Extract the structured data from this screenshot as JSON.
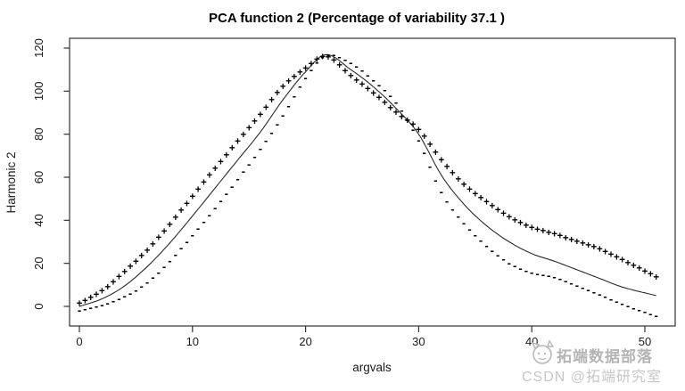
{
  "chart_data": {
    "type": "line",
    "title": "PCA function 2 (Percentage of variability 37.1 )",
    "pca_function_number": 2,
    "percent_variability": 37.1,
    "xlabel": "argvals",
    "ylabel": "Harmonic 2",
    "xlim": [
      0,
      51
    ],
    "ylim": [
      -9,
      122
    ],
    "xticks": [
      0,
      10,
      20,
      30,
      40,
      50
    ],
    "yticks": [
      0,
      20,
      40,
      60,
      80,
      100,
      120
    ],
    "grid": false,
    "legend": "none",
    "marker_step": 0.5,
    "series": [
      {
        "name": "mean_curve",
        "style": "solid-line",
        "marker": "",
        "points": [
          [
            0,
            0
          ],
          [
            2,
            3.5
          ],
          [
            4,
            9.5
          ],
          [
            6,
            18.5
          ],
          [
            8,
            29.5
          ],
          [
            10,
            42
          ],
          [
            12,
            55
          ],
          [
            14,
            68
          ],
          [
            16,
            81
          ],
          [
            18,
            96
          ],
          [
            20,
            109
          ],
          [
            21.8,
            117
          ],
          [
            24,
            110
          ],
          [
            26,
            102
          ],
          [
            28,
            92
          ],
          [
            30,
            80
          ],
          [
            32,
            61
          ],
          [
            34,
            47.5
          ],
          [
            36,
            37.5
          ],
          [
            38,
            30
          ],
          [
            40,
            24.5
          ],
          [
            42,
            21
          ],
          [
            44,
            17
          ],
          [
            46,
            13
          ],
          [
            48,
            9
          ],
          [
            51,
            5
          ]
        ]
      },
      {
        "name": "mean_plus_harmonic",
        "style": "markers",
        "marker": "+",
        "points": [
          [
            0,
            1.2
          ],
          [
            2,
            7
          ],
          [
            4,
            16
          ],
          [
            6,
            26
          ],
          [
            8,
            38
          ],
          [
            10,
            51
          ],
          [
            12,
            64
          ],
          [
            14,
            76.5
          ],
          [
            16,
            89
          ],
          [
            18,
            102
          ],
          [
            20,
            110.5
          ],
          [
            21.8,
            116
          ],
          [
            24,
            107
          ],
          [
            26,
            99
          ],
          [
            28,
            90
          ],
          [
            30,
            82
          ],
          [
            32,
            68
          ],
          [
            34,
            56.5
          ],
          [
            36,
            48.5
          ],
          [
            38,
            41.5
          ],
          [
            40,
            36.5
          ],
          [
            42,
            33.5
          ],
          [
            44,
            30
          ],
          [
            46,
            26.5
          ],
          [
            48,
            21.5
          ],
          [
            51,
            13.5
          ]
        ]
      },
      {
        "name": "mean_minus_harmonic",
        "style": "markers",
        "marker": "-",
        "points": [
          [
            0,
            -2
          ],
          [
            2,
            0.5
          ],
          [
            4,
            4.5
          ],
          [
            6,
            11
          ],
          [
            8,
            21
          ],
          [
            10,
            33
          ],
          [
            12,
            45.5
          ],
          [
            14,
            59
          ],
          [
            16,
            73
          ],
          [
            18,
            88.5
          ],
          [
            20,
            106
          ],
          [
            21.8,
            116.5
          ],
          [
            24,
            113
          ],
          [
            26,
            105
          ],
          [
            28,
            94.5
          ],
          [
            30,
            77
          ],
          [
            32,
            53
          ],
          [
            34,
            38.5
          ],
          [
            36,
            28
          ],
          [
            38,
            20
          ],
          [
            40,
            15.5
          ],
          [
            42,
            13.5
          ],
          [
            44,
            9.5
          ],
          [
            46,
            5.5
          ],
          [
            48,
            1
          ],
          [
            51,
            -4.5
          ]
        ]
      }
    ]
  },
  "watermark": {
    "line1": "拓端数据部落",
    "line2": "CSDN @拓端研究室"
  },
  "colors": {
    "background": "#ffffff",
    "curve": "#2a2a2a",
    "marker": "#000000",
    "axis": "#333333",
    "text": "#000000",
    "watermark_line1": "#a3a3a3",
    "watermark_line2": "#bdbdbd"
  }
}
